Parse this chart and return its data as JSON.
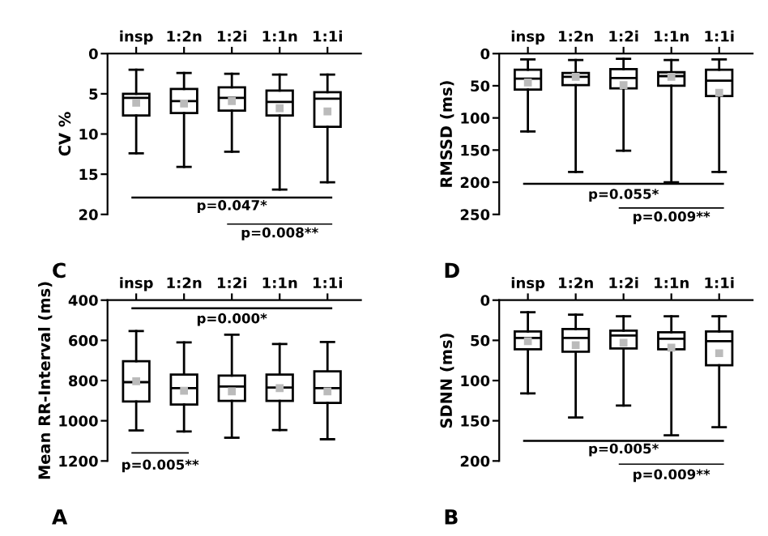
{
  "chart_data": [
    {
      "type": "box",
      "title": "C",
      "ylabel": "CV %",
      "categories": [
        "insp",
        "1:2n",
        "1:2i",
        "1:1n",
        "1:1i"
      ],
      "ylim": [
        20,
        0
      ],
      "yticks": [
        0,
        5,
        10,
        15,
        20
      ],
      "boxes": [
        {
          "low": 2.0,
          "q1": 5.0,
          "median": 5.5,
          "q3": 7.7,
          "high": 12.4,
          "mean": 6.1
        },
        {
          "low": 2.4,
          "q1": 4.4,
          "median": 5.9,
          "q3": 7.4,
          "high": 14.1,
          "mean": 6.2
        },
        {
          "low": 2.5,
          "q1": 4.2,
          "median": 5.5,
          "q3": 7.1,
          "high": 12.2,
          "mean": 5.9
        },
        {
          "low": 2.6,
          "q1": 4.6,
          "median": 6.0,
          "q3": 7.7,
          "high": 16.9,
          "mean": 6.8
        },
        {
          "low": 2.6,
          "q1": 4.8,
          "median": 5.6,
          "q3": 9.1,
          "high": 16.0,
          "mean": 7.2
        }
      ],
      "ref_lines": [
        {
          "axis": "y",
          "value": 17.9
        }
      ],
      "annotations": [
        "p=0.047*",
        "p=0.008**"
      ]
    },
    {
      "type": "box",
      "title": "D",
      "ylabel": "RMSSD (ms)",
      "categories": [
        "insp",
        "1:2n",
        "1:2i",
        "1:1n",
        "1:1i"
      ],
      "ylim": [
        250,
        0
      ],
      "yticks": [
        0,
        50,
        100,
        150,
        200,
        250
      ],
      "boxes": [
        {
          "low": 9,
          "q1": 25,
          "median": 39,
          "q3": 56,
          "high": 121,
          "mean": 45
        },
        {
          "low": 10,
          "q1": 30,
          "median": 36,
          "q3": 49,
          "high": 184,
          "mean": 36
        },
        {
          "low": 8,
          "q1": 24,
          "median": 38,
          "q3": 54,
          "high": 151,
          "mean": 49
        },
        {
          "low": 10,
          "q1": 29,
          "median": 35,
          "q3": 50,
          "high": 200,
          "mean": 36
        },
        {
          "low": 9,
          "q1": 25,
          "median": 42,
          "q3": 66,
          "high": 184,
          "mean": 61
        }
      ],
      "ref_lines": [
        {
          "axis": "y",
          "value": 202.5
        }
      ],
      "annotations": [
        "p=0.055*",
        "p=0.009**"
      ]
    },
    {
      "type": "box",
      "title": "A",
      "ylabel": "Mean RR-Interval (ms)",
      "categories": [
        "insp",
        "1:2n",
        "1:2i",
        "1:1n",
        "1:1i"
      ],
      "ylim": [
        1200,
        400
      ],
      "yticks": [
        400,
        600,
        800,
        1000,
        1200
      ],
      "boxes": [
        {
          "low": 554,
          "q1": 704,
          "median": 808,
          "q3": 904,
          "high": 1048,
          "mean": 803
        },
        {
          "low": 610,
          "q1": 770,
          "median": 838,
          "q3": 919,
          "high": 1053,
          "mean": 851
        },
        {
          "low": 572,
          "q1": 775,
          "median": 830,
          "q3": 901,
          "high": 1084,
          "mean": 854
        },
        {
          "low": 618,
          "q1": 770,
          "median": 835,
          "q3": 901,
          "high": 1046,
          "mean": 838
        },
        {
          "low": 608,
          "q1": 754,
          "median": 838,
          "q3": 911,
          "high": 1092,
          "mean": 854
        }
      ],
      "ref_lines": [
        {
          "axis": "y",
          "value": 440
        }
      ],
      "annotations": [
        "p=0.000*",
        "p=0.005**"
      ]
    },
    {
      "type": "box",
      "title": "B",
      "ylabel": "SDNN (ms)",
      "categories": [
        "insp",
        "1:2n",
        "1:2i",
        "1:1n",
        "1:1i"
      ],
      "ylim": [
        200,
        0
      ],
      "yticks": [
        0,
        50,
        100,
        150,
        200
      ],
      "boxes": [
        {
          "low": 15,
          "q1": 39,
          "median": 47,
          "q3": 61,
          "high": 116,
          "mean": 51
        },
        {
          "low": 18,
          "q1": 36,
          "median": 47,
          "q3": 64,
          "high": 146,
          "mean": 56
        },
        {
          "low": 20,
          "q1": 38,
          "median": 44,
          "q3": 60,
          "high": 131,
          "mean": 53
        },
        {
          "low": 20,
          "q1": 40,
          "median": 48,
          "q3": 61,
          "high": 168,
          "mean": 59
        },
        {
          "low": 20,
          "q1": 39,
          "median": 51,
          "q3": 81,
          "high": 158,
          "mean": 66
        }
      ],
      "ref_lines": [
        {
          "axis": "y",
          "value": 175
        }
      ],
      "annotations": [
        "p=0.005*",
        "p=0.009**"
      ]
    }
  ]
}
